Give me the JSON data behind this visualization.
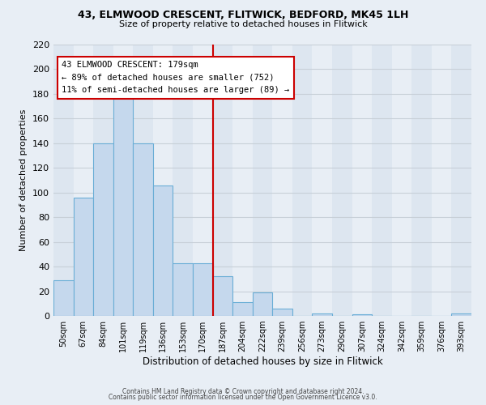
{
  "title1": "43, ELMWOOD CRESCENT, FLITWICK, BEDFORD, MK45 1LH",
  "title2": "Size of property relative to detached houses in Flitwick",
  "xlabel": "Distribution of detached houses by size in Flitwick",
  "ylabel": "Number of detached properties",
  "bar_labels": [
    "50sqm",
    "67sqm",
    "84sqm",
    "101sqm",
    "119sqm",
    "136sqm",
    "153sqm",
    "170sqm",
    "187sqm",
    "204sqm",
    "222sqm",
    "239sqm",
    "256sqm",
    "273sqm",
    "290sqm",
    "307sqm",
    "324sqm",
    "342sqm",
    "359sqm",
    "376sqm",
    "393sqm"
  ],
  "bar_values": [
    29,
    96,
    140,
    183,
    140,
    106,
    43,
    43,
    32,
    11,
    19,
    6,
    0,
    2,
    0,
    1,
    0,
    0,
    0,
    0,
    2
  ],
  "bar_color": "#c5d8ed",
  "bar_edge_color": "#6aaed6",
  "vline_x": 7.5,
  "vline_color": "#cc0000",
  "annotation_title": "43 ELMWOOD CRESCENT: 179sqm",
  "annotation_line1": "← 89% of detached houses are smaller (752)",
  "annotation_line2": "11% of semi-detached houses are larger (89) →",
  "annotation_box_color": "#ffffff",
  "annotation_box_edge": "#cc0000",
  "ylim": [
    0,
    220
  ],
  "yticks": [
    0,
    20,
    40,
    60,
    80,
    100,
    120,
    140,
    160,
    180,
    200,
    220
  ],
  "footer1": "Contains HM Land Registry data © Crown copyright and database right 2024.",
  "footer2": "Contains public sector information licensed under the Open Government Licence v3.0.",
  "bg_color": "#e8eef5",
  "col_bg_even": "#dde6f0",
  "col_bg_odd": "#e8eef5",
  "grid_color": "#c8d0d8"
}
